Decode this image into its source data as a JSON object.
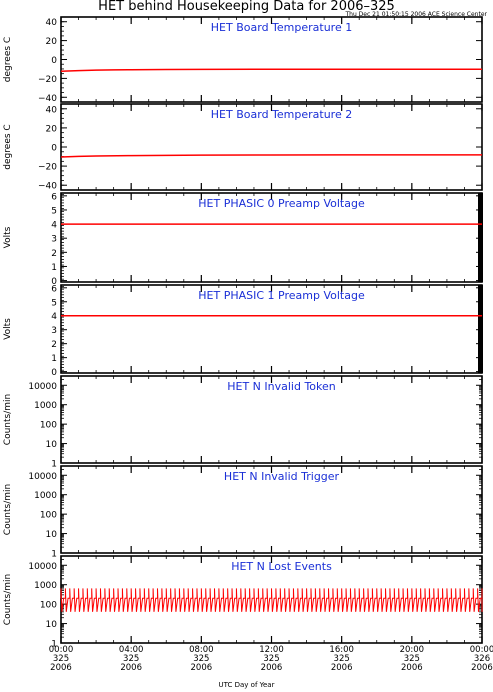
{
  "header": {
    "title": "HET behind Housekeeping Data for 2006–325",
    "timestamp": "Thu Dec 21 01:50:15 2006 ACE Science Center"
  },
  "colors": {
    "panel_title": "#1a2fd6",
    "data": "#ff0000",
    "axis": "#000000"
  },
  "chart_data": [
    {
      "type": "line",
      "title": "HET Board Temperature 1",
      "ylabel": "degrees C",
      "ylim": [
        -45,
        45
      ],
      "yscale": "linear",
      "yticks": [
        -40,
        -20,
        0,
        20,
        40
      ],
      "xlim": [
        0,
        24
      ],
      "series": [
        {
          "x": [
            0,
            1,
            2,
            3,
            4,
            6,
            8,
            12,
            16,
            20,
            24
          ],
          "y": [
            -12.5,
            -11.8,
            -11.3,
            -11,
            -10.8,
            -10.6,
            -10.4,
            -10.3,
            -10.3,
            -10.3,
            -10.3
          ]
        }
      ]
    },
    {
      "type": "line",
      "title": "HET Board Temperature 2",
      "ylabel": "degrees C",
      "ylim": [
        -45,
        45
      ],
      "yscale": "linear",
      "yticks": [
        -40,
        -20,
        0,
        20,
        40
      ],
      "xlim": [
        0,
        24
      ],
      "series": [
        {
          "x": [
            0,
            1,
            2,
            4,
            6,
            8,
            12,
            16,
            20,
            24
          ],
          "y": [
            -10.5,
            -9.8,
            -9.4,
            -9,
            -8.8,
            -8.5,
            -8.4,
            -8.3,
            -8.3,
            -8.3
          ]
        }
      ]
    },
    {
      "type": "line",
      "title": "HET PHASIC 0 Preamp Voltage",
      "ylabel": "Volts",
      "ylim": [
        -0.1,
        6.2
      ],
      "yscale": "linear",
      "yticks": [
        0,
        1,
        2,
        3,
        4,
        5,
        6
      ],
      "xlim": [
        0,
        24
      ],
      "series": [
        {
          "x": [
            0,
            24
          ],
          "y": [
            4.0,
            4.0
          ]
        }
      ]
    },
    {
      "type": "line",
      "title": "HET PHASIC 1 Preamp Voltage",
      "ylabel": "Volts",
      "ylim": [
        -0.1,
        6.2
      ],
      "yscale": "linear",
      "yticks": [
        0,
        1,
        2,
        3,
        4,
        5,
        6
      ],
      "xlim": [
        0,
        24
      ],
      "series": [
        {
          "x": [
            0,
            24
          ],
          "y": [
            4.0,
            4.0
          ]
        }
      ]
    },
    {
      "type": "line",
      "title": "HET N Invalid Token",
      "ylabel": "Counts/min",
      "ylim": [
        1,
        30000
      ],
      "yscale": "log",
      "yticks": [
        1,
        10,
        100,
        1000,
        10000
      ],
      "xlim": [
        0,
        24
      ],
      "series": []
    },
    {
      "type": "line",
      "title": "HET N Invalid Trigger",
      "ylabel": "Counts/min",
      "ylim": [
        1,
        30000
      ],
      "yscale": "log",
      "yticks": [
        1,
        10,
        100,
        1000,
        10000
      ],
      "xlim": [
        0,
        24
      ],
      "series": []
    },
    {
      "type": "line",
      "title": "HET N Lost Events",
      "ylabel": "Counts/min",
      "ylim": [
        1,
        30000
      ],
      "yscale": "log",
      "yticks": [
        1,
        10,
        100,
        1000,
        10000
      ],
      "xlim": [
        0,
        24
      ],
      "series": [
        {
          "pattern": "periodic spikes",
          "period_hours": 0.25,
          "peak": 650,
          "trough": 40,
          "baseline": 200
        }
      ]
    }
  ],
  "xaxis": {
    "label": "UTC Day of Year",
    "ticks": [
      {
        "x": 0,
        "lines": [
          "00:00",
          "325",
          "2006"
        ]
      },
      {
        "x": 4,
        "lines": [
          "04:00",
          "325",
          "2006"
        ]
      },
      {
        "x": 8,
        "lines": [
          "08:00",
          "325",
          "2006"
        ]
      },
      {
        "x": 12,
        "lines": [
          "12:00",
          "325",
          "2006"
        ]
      },
      {
        "x": 16,
        "lines": [
          "16:00",
          "325",
          "2006"
        ]
      },
      {
        "x": 20,
        "lines": [
          "20:00",
          "325",
          "2006"
        ]
      },
      {
        "x": 24,
        "lines": [
          "00:00",
          "326",
          "2006"
        ]
      }
    ]
  }
}
